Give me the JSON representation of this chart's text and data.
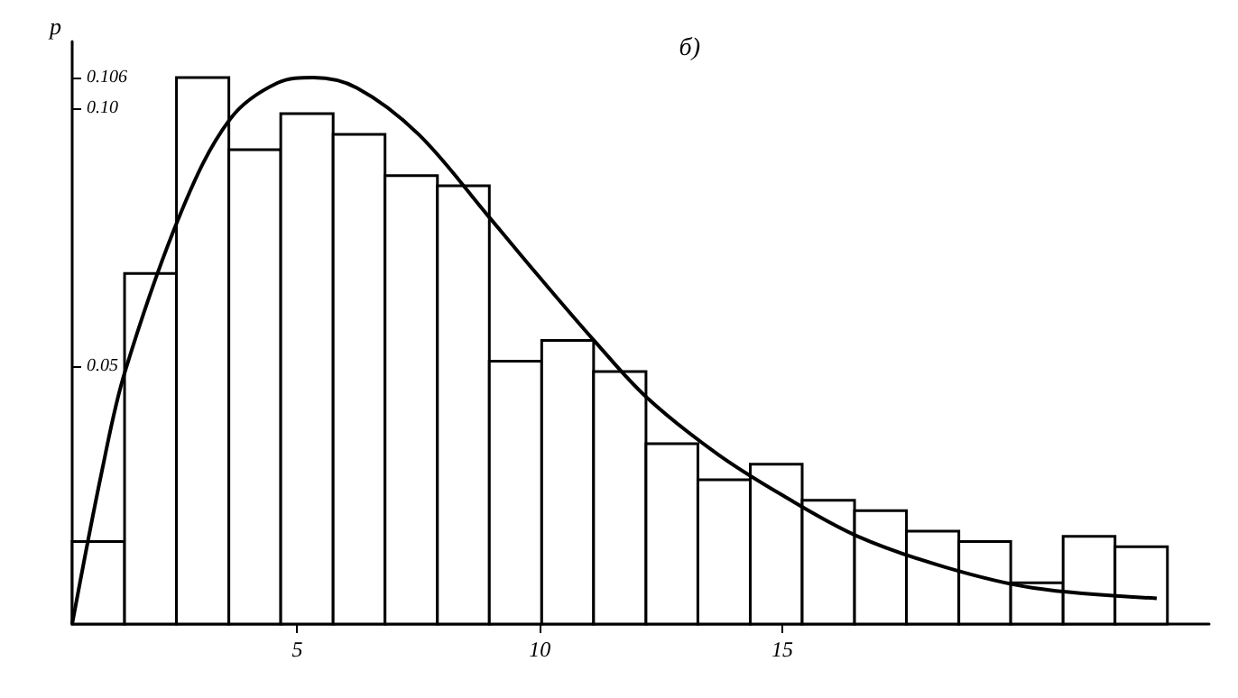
{
  "chart_data": {
    "type": "histogram",
    "ylabel": "p",
    "annotations": [
      "б)"
    ],
    "bins": [
      0.36,
      1.44,
      2.51,
      3.59,
      4.66,
      5.74,
      6.81,
      7.89,
      8.96,
      10.04,
      11.11,
      12.19,
      13.26,
      14.34,
      15.41,
      16.49,
      17.56,
      18.64,
      19.71,
      20.79,
      21.86,
      22.94
    ],
    "values": [
      0.016,
      0.068,
      0.106,
      0.092,
      0.099,
      0.095,
      0.087,
      0.085,
      0.051,
      0.055,
      0.049,
      0.035,
      0.028,
      0.031,
      0.024,
      0.022,
      0.018,
      0.016,
      0.008,
      0.017,
      0.015
    ],
    "color": "#ffffff",
    "series": [
      {
        "type": "line",
        "color": "#000000",
        "x": [
          0.36,
          0.98,
          1.45,
          2.61,
          3.62,
          4.6,
          5.33,
          6.23,
          7.5,
          8.95,
          9.93,
          11.12,
          12.2,
          13.66,
          15.0,
          16.56,
          18.37,
          20.18,
          22.72
        ],
        "values": [
          0,
          0.03,
          0.049,
          0.08,
          0.098,
          0.105,
          0.106,
          0.104,
          0.095,
          0.079,
          0.068,
          0.055,
          0.044,
          0.033,
          0.025,
          0.017,
          0.011,
          0.007,
          0.005
        ]
      }
    ],
    "xlim": [
      0.36,
      23.8
    ],
    "xticks": [
      5,
      10,
      15
    ],
    "ylim": [
      0,
      0.113
    ],
    "yticks": [
      0.05,
      {
        "value": 0.1,
        "label": "0.10"
      },
      0.106
    ],
    "grid": false,
    "marker": "none",
    "line_style": "solid"
  }
}
